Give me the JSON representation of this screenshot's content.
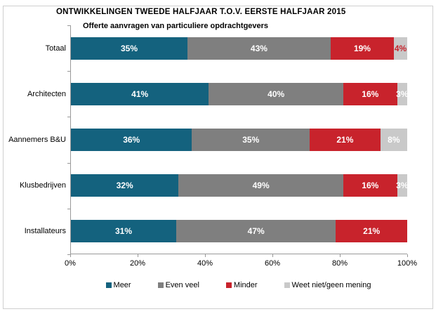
{
  "title": "ONTWIKKELINGEN TWEEDE HALFJAAR T.O.V. EERSTE HALFJAAR 2015",
  "subtitle": "Offerte aanvragen van particuliere opdrachtgevers",
  "colors": {
    "meer": "#14627E",
    "even_veel": "#7F7F7F",
    "minder": "#C8232C",
    "weet_niet": "#C9C9C9",
    "axis": "#999999",
    "frame_border": "#CFCFCF",
    "bar_label": "#FFFFFF",
    "text": "#000000"
  },
  "chart_data": {
    "type": "bar",
    "orientation": "horizontal-stacked-100",
    "title": "ONTWIKKELINGEN TWEEDE HALFJAAR T.O.V. EERSTE HALFJAAR 2015",
    "subtitle": "Offerte aanvragen van particuliere opdrachtgevers",
    "categories": [
      "Totaal",
      "Architecten",
      "Aannemers B&U",
      "Klusbedrijven",
      "Installateurs"
    ],
    "series": [
      {
        "name": "Meer",
        "color": "#14627E",
        "label_color": "#FFFFFF",
        "values": [
          35,
          41,
          36,
          32,
          31
        ]
      },
      {
        "name": "Even veel",
        "color": "#7F7F7F",
        "label_color": "#FFFFFF",
        "values": [
          43,
          40,
          35,
          49,
          47
        ]
      },
      {
        "name": "Minder",
        "color": "#C8232C",
        "label_color": "#FFFFFF",
        "values": [
          19,
          16,
          21,
          16,
          21
        ]
      },
      {
        "name": "Weet niet/geen mening",
        "color": "#C9C9C9",
        "label_color": "#FFFFFF",
        "values": [
          4,
          3,
          8,
          3,
          0
        ]
      }
    ],
    "label_color_overrides": [
      {
        "category": "Totaal",
        "series": "Weet niet/geen mening",
        "color": "#C8232C"
      }
    ],
    "data_label_suffix": "%",
    "xlabel": "",
    "ylabel": "",
    "x_ticks": [
      "0%",
      "20%",
      "40%",
      "60%",
      "80%",
      "100%"
    ],
    "xlim": [
      0,
      100
    ],
    "grid": false,
    "legend_position": "bottom"
  },
  "legend": [
    {
      "label": "Meer",
      "color": "#14627E"
    },
    {
      "label": "Even veel",
      "color": "#7F7F7F"
    },
    {
      "label": "Minder",
      "color": "#C8232C"
    },
    {
      "label": "Weet niet/geen mening",
      "color": "#C9C9C9"
    }
  ]
}
